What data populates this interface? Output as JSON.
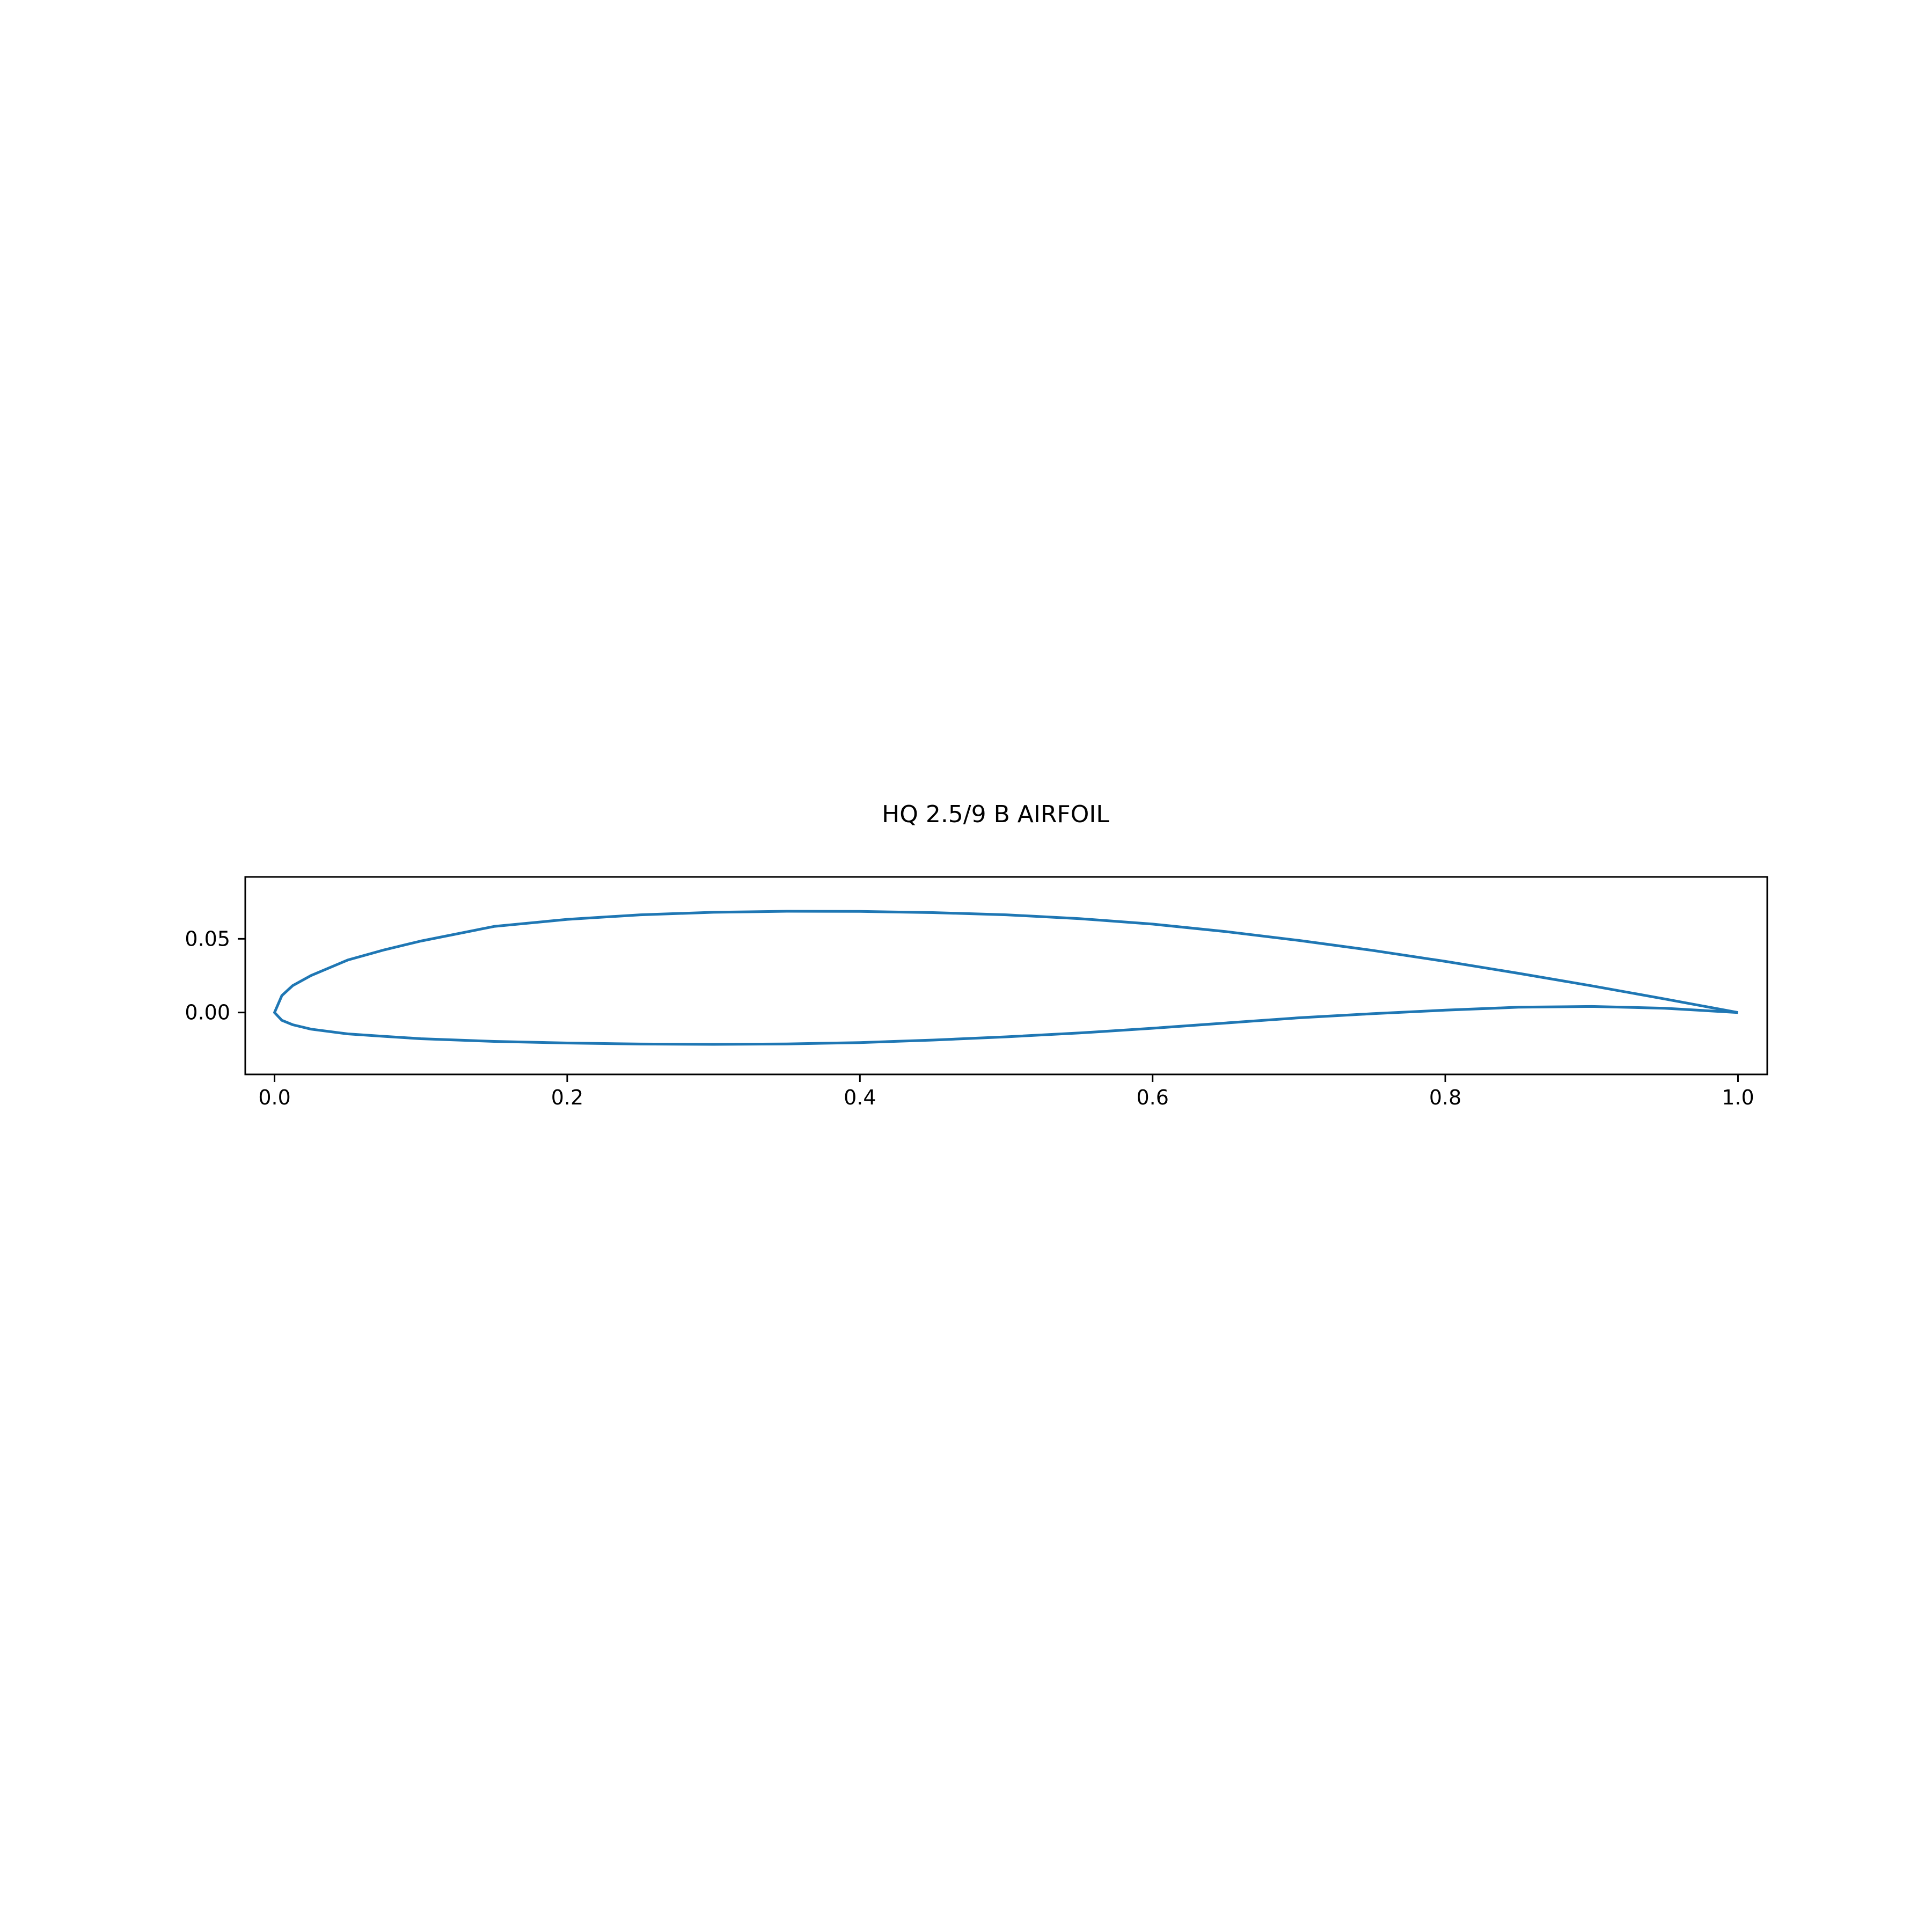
{
  "chart_data": {
    "type": "line",
    "title": "HQ 2.5/9 B AIRFOIL",
    "xlabel": "",
    "ylabel": "",
    "xlim": [
      -0.02,
      1.02
    ],
    "ylim": [
      -0.042,
      0.092
    ],
    "grid": false,
    "legend": "none",
    "x_ticks": [
      {
        "value": 0.0,
        "label": "0.0"
      },
      {
        "value": 0.2,
        "label": "0.2"
      },
      {
        "value": 0.4,
        "label": "0.4"
      },
      {
        "value": 0.6,
        "label": "0.6"
      },
      {
        "value": 0.8,
        "label": "0.8"
      },
      {
        "value": 1.0,
        "label": "1.0"
      }
    ],
    "y_ticks": [
      {
        "value": 0.0,
        "label": "0.00"
      },
      {
        "value": 0.05,
        "label": "0.05"
      }
    ],
    "series": [
      {
        "color": "#1f77b4",
        "x": [
          1.0,
          0.95,
          0.9,
          0.85,
          0.8,
          0.75,
          0.7,
          0.65,
          0.6,
          0.55,
          0.5,
          0.45,
          0.4,
          0.35,
          0.3,
          0.25,
          0.2,
          0.15,
          0.1,
          0.075,
          0.05,
          0.025,
          0.0125,
          0.005,
          0.0,
          0.005,
          0.0125,
          0.025,
          0.05,
          0.075,
          0.1,
          0.15,
          0.2,
          0.25,
          0.3,
          0.35,
          0.4,
          0.45,
          0.5,
          0.55,
          0.6,
          0.65,
          0.7,
          0.75,
          0.8,
          0.85,
          0.9,
          0.95,
          1.0
        ],
        "y": [
          0.0,
          0.0092,
          0.0181,
          0.0266,
          0.0347,
          0.0422,
          0.0489,
          0.0549,
          0.06,
          0.0637,
          0.0663,
          0.0678,
          0.0686,
          0.0687,
          0.068,
          0.0663,
          0.0632,
          0.0584,
          0.0485,
          0.0425,
          0.0356,
          0.0251,
          0.0183,
          0.0115,
          0.0,
          -0.0053,
          -0.0083,
          -0.0113,
          -0.0145,
          -0.0162,
          -0.0178,
          -0.0196,
          -0.0207,
          -0.0214,
          -0.0216,
          -0.0213,
          -0.0204,
          -0.0187,
          -0.0165,
          -0.0139,
          -0.0107,
          -0.0071,
          -0.0036,
          -0.0008,
          0.0016,
          0.0036,
          0.0041,
          0.0029,
          0.0
        ]
      }
    ]
  }
}
